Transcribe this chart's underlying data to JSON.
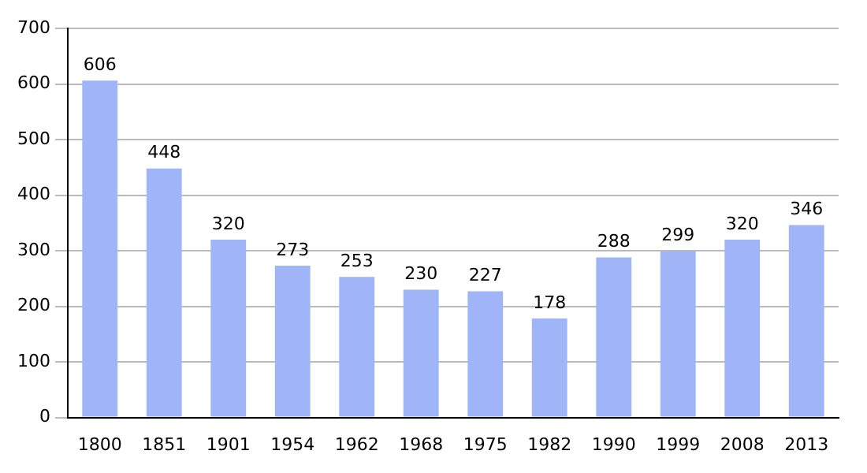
{
  "chart_data": {
    "type": "bar",
    "categories": [
      "1800",
      "1851",
      "1901",
      "1954",
      "1962",
      "1968",
      "1975",
      "1982",
      "1990",
      "1999",
      "2008",
      "2013"
    ],
    "values": [
      606,
      448,
      320,
      273,
      253,
      230,
      227,
      178,
      288,
      299,
      320,
      346
    ],
    "color": "#a0b4f8",
    "ylim": [
      0,
      700
    ],
    "yticks": [
      0,
      100,
      200,
      300,
      400,
      500,
      600,
      700
    ],
    "grid": "y",
    "data_labels": true,
    "legend": false
  }
}
